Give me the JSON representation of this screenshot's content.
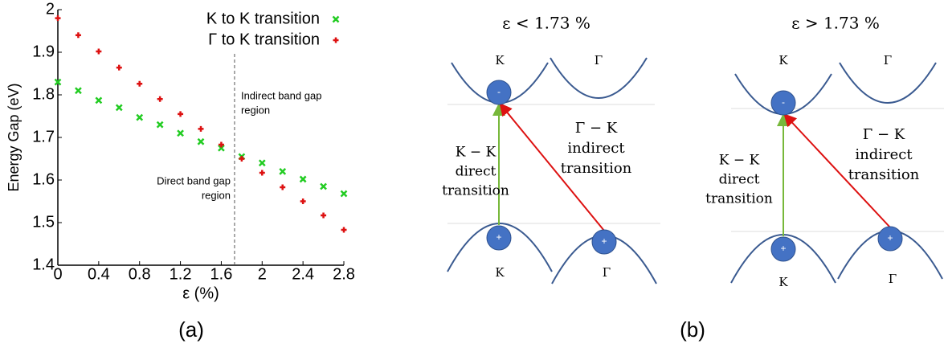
{
  "chart_data": {
    "type": "scatter",
    "xlabel": "ε (%)",
    "ylabel": "Energy Gap (eV)",
    "x": [
      0,
      0.2,
      0.4,
      0.6,
      0.8,
      1.0,
      1.2,
      1.4,
      1.6,
      1.8,
      2.0,
      2.2,
      2.4,
      2.6,
      2.8
    ],
    "series": [
      {
        "name": "K to K transition",
        "color": "#22cc22",
        "marker": "x",
        "values": [
          1.83,
          1.81,
          1.787,
          1.77,
          1.747,
          1.73,
          1.71,
          1.69,
          1.675,
          1.655,
          1.64,
          1.62,
          1.602,
          1.585,
          1.568
        ]
      },
      {
        "name": "Γ to K transition",
        "color": "#dd1111",
        "marker": "+",
        "values": [
          1.98,
          1.94,
          1.902,
          1.864,
          1.826,
          1.79,
          1.755,
          1.72,
          1.683,
          1.65,
          1.617,
          1.583,
          1.55,
          1.517,
          1.483
        ]
      }
    ],
    "xlim": [
      0,
      2.8
    ],
    "xticks": [
      0,
      0.4,
      0.8,
      1.2,
      1.6,
      2,
      2.4,
      2.8
    ],
    "ylim": [
      1.4,
      2
    ],
    "yticks": [
      1.4,
      1.5,
      1.6,
      1.7,
      1.8,
      1.9,
      2
    ],
    "vline": 1.73,
    "annotations": [
      [
        "Direct band gap",
        "region"
      ],
      [
        "Indirect band gap",
        "region"
      ]
    ],
    "legend": "upper right"
  },
  "panel_labels": [
    "(a)",
    "(b)"
  ],
  "diagram": {
    "panels": [
      {
        "title": "ε < 1.73 %",
        "top_left": "K",
        "top_right": "Γ",
        "bottom_left": "K",
        "bottom_right": "Γ",
        "electron": "-",
        "hole": "+",
        "direct": [
          "K − K",
          "direct",
          "transition"
        ],
        "indirect": [
          "Γ − K",
          "indirect",
          "transition"
        ]
      },
      {
        "title": "ε > 1.73 %",
        "top_left": "K",
        "top_right": "Γ",
        "bottom_left": "K",
        "bottom_right": "Γ",
        "electron": "-",
        "hole": "+",
        "direct": [
          "K − K",
          "direct",
          "transition"
        ],
        "indirect": [
          "Γ − K",
          "indirect",
          "transition"
        ]
      }
    ]
  }
}
